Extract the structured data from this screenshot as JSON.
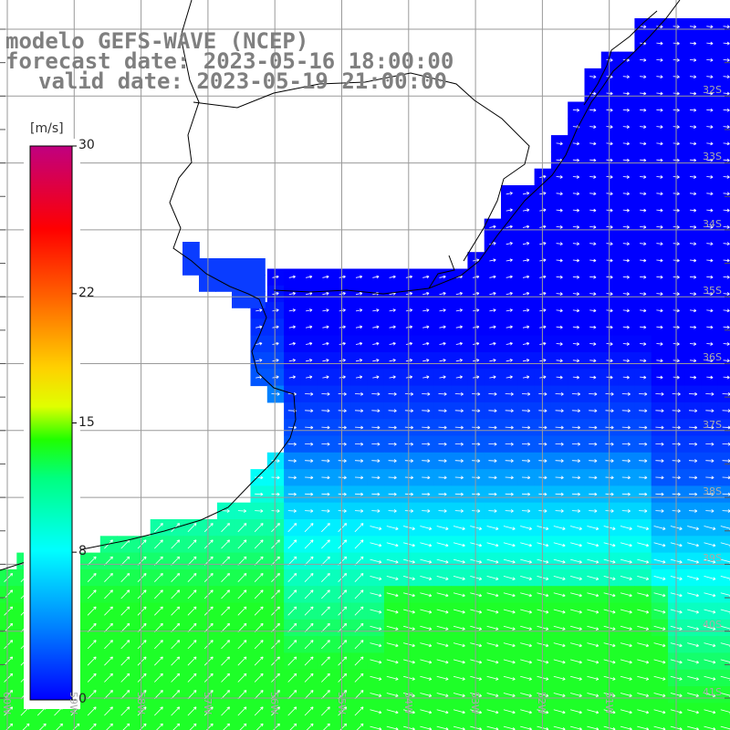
{
  "title": {
    "line1": "modelo GEFS-WAVE (NCEP)",
    "line2": "forecast date: 2023-05-16 18:00:00",
    "line3": "valid date: 2023-05-19 21:00:00"
  },
  "colorbar": {
    "unit": "[m/s]",
    "ticks": [
      {
        "value": 30,
        "label": "30"
      },
      {
        "value": 22,
        "label": "22"
      },
      {
        "value": 15,
        "label": "15"
      },
      {
        "value": 8,
        "label": "8"
      },
      {
        "value": 0,
        "label": "0"
      }
    ],
    "min": 0,
    "max": 30,
    "colors": [
      "#0000ff",
      "#00a0ff",
      "#00ffff",
      "#00ff40",
      "#40ff00",
      "#ffff00",
      "#ff8000",
      "#ff0000",
      "#c80080"
    ]
  },
  "lat_labels": [
    "32S",
    "33S",
    "34S",
    "35S",
    "36S",
    "37S",
    "38S",
    "39S",
    "40S",
    "41S"
  ],
  "lon_labels": [
    "60W",
    "59W",
    "58W",
    "57W",
    "56W",
    "55W",
    "54W",
    "53W",
    "52W",
    "51W"
  ],
  "colors": {
    "grid": "#9a9a9a",
    "coast": "#000000",
    "arrows": "#ffffff",
    "title": "#7f7f7f"
  }
}
